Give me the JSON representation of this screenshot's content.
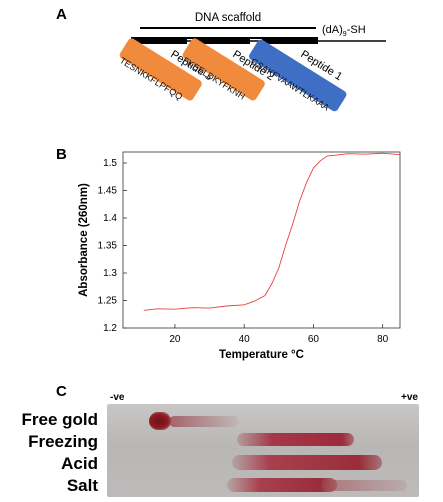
{
  "panels": {
    "a": "A",
    "b": "B",
    "c": "C"
  },
  "scaffold": {
    "title": "DNA scaffold",
    "tail_main": "(dA)",
    "tail_sub": "9",
    "tail_end": "-SH"
  },
  "peptides": [
    {
      "name": "Peptide 3",
      "sequence": "TESNKKFLPFQQ",
      "color": "#f08a3c"
    },
    {
      "name": "Peptide 2",
      "sequence": "FKEELDKYFKNH",
      "color": "#f08a3c"
    },
    {
      "name": "Peptide 1",
      "sequence": "GSAKFVAAWTLKAAA",
      "color": "#3e6fc4"
    }
  ],
  "chart_data": {
    "type": "line",
    "title": "",
    "xlabel": "Temperature °C",
    "ylabel": "Absorbance (260nm)",
    "xlim": [
      5,
      85
    ],
    "ylim": [
      1.2,
      1.52
    ],
    "xticks": [
      20,
      40,
      60,
      80
    ],
    "yticks": [
      1.2,
      1.25,
      1.3,
      1.35,
      1.4,
      1.45,
      1.5
    ],
    "ytick_labels": [
      "1.2",
      "1.25",
      "1.3",
      "1.35",
      "1.4",
      "1.45",
      "1.5"
    ],
    "grid": false,
    "line_color": "#e8423e",
    "series": [
      {
        "x": [
          11,
          15,
          20,
          25,
          30,
          35,
          40,
          43,
          46,
          48,
          50,
          52,
          54,
          56,
          58,
          60,
          62,
          64,
          66,
          70,
          75,
          80,
          85
        ],
        "y": [
          1.233,
          1.234,
          1.235,
          1.236,
          1.237,
          1.239,
          1.243,
          1.248,
          1.26,
          1.28,
          1.31,
          1.35,
          1.39,
          1.43,
          1.465,
          1.49,
          1.505,
          1.512,
          1.515,
          1.516,
          1.517,
          1.517,
          1.516
        ]
      }
    ]
  },
  "gel": {
    "negative": "-ve",
    "positive": "+ve",
    "lanes": [
      "Free gold",
      "Freezing",
      "Acid",
      "Salt"
    ],
    "band_color": "#9e2a33"
  }
}
